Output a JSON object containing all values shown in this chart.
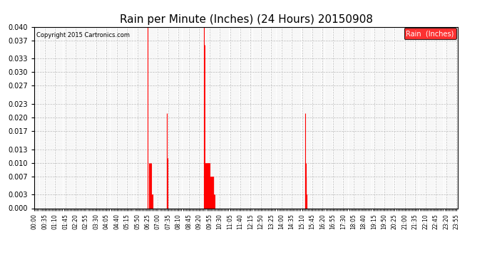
{
  "title": "Rain per Minute (Inches) (24 Hours) 20150908",
  "copyright": "Copyright 2015 Cartronics.com",
  "legend_label": "Rain  (Inches)",
  "bar_color": "#ff0000",
  "background_color": "#ffffff",
  "grid_color": "#bbbbbb",
  "ylim": [
    0.0,
    0.04
  ],
  "yticks": [
    0.0,
    0.003,
    0.007,
    0.01,
    0.013,
    0.017,
    0.02,
    0.023,
    0.027,
    0.03,
    0.033,
    0.037,
    0.04
  ],
  "total_minutes": 1440,
  "rain_events": [
    {
      "minute": 386,
      "value": 0.04
    },
    {
      "minute": 390,
      "value": 0.01
    },
    {
      "minute": 392,
      "value": 0.007
    },
    {
      "minute": 393,
      "value": 0.01
    },
    {
      "minute": 394,
      "value": 0.003
    },
    {
      "minute": 395,
      "value": 0.01
    },
    {
      "minute": 396,
      "value": 0.003
    },
    {
      "minute": 397,
      "value": 0.01
    },
    {
      "minute": 398,
      "value": 0.003
    },
    {
      "minute": 399,
      "value": 0.003
    },
    {
      "minute": 400,
      "value": 0.003
    },
    {
      "minute": 401,
      "value": 0.003
    },
    {
      "minute": 402,
      "value": 0.003
    },
    {
      "minute": 450,
      "value": 0.021
    },
    {
      "minute": 451,
      "value": 0.011
    },
    {
      "minute": 452,
      "value": 0.003
    },
    {
      "minute": 453,
      "value": 0.011
    },
    {
      "minute": 577,
      "value": 0.04
    },
    {
      "minute": 578,
      "value": 0.036
    },
    {
      "minute": 579,
      "value": 0.01
    },
    {
      "minute": 580,
      "value": 0.01
    },
    {
      "minute": 581,
      "value": 0.01
    },
    {
      "minute": 582,
      "value": 0.01
    },
    {
      "minute": 583,
      "value": 0.01
    },
    {
      "minute": 584,
      "value": 0.01
    },
    {
      "minute": 585,
      "value": 0.01
    },
    {
      "minute": 586,
      "value": 0.01
    },
    {
      "minute": 587,
      "value": 0.01
    },
    {
      "minute": 588,
      "value": 0.01
    },
    {
      "minute": 589,
      "value": 0.01
    },
    {
      "minute": 590,
      "value": 0.01
    },
    {
      "minute": 591,
      "value": 0.01
    },
    {
      "minute": 592,
      "value": 0.01
    },
    {
      "minute": 593,
      "value": 0.01
    },
    {
      "minute": 594,
      "value": 0.01
    },
    {
      "minute": 595,
      "value": 0.01
    },
    {
      "minute": 596,
      "value": 0.01
    },
    {
      "minute": 597,
      "value": 0.007
    },
    {
      "minute": 598,
      "value": 0.007
    },
    {
      "minute": 599,
      "value": 0.007
    },
    {
      "minute": 600,
      "value": 0.007
    },
    {
      "minute": 601,
      "value": 0.007
    },
    {
      "minute": 602,
      "value": 0.007
    },
    {
      "minute": 603,
      "value": 0.007
    },
    {
      "minute": 604,
      "value": 0.007
    },
    {
      "minute": 605,
      "value": 0.007
    },
    {
      "minute": 606,
      "value": 0.007
    },
    {
      "minute": 607,
      "value": 0.007
    },
    {
      "minute": 608,
      "value": 0.007
    },
    {
      "minute": 609,
      "value": 0.007
    },
    {
      "minute": 610,
      "value": 0.003
    },
    {
      "minute": 611,
      "value": 0.003
    },
    {
      "minute": 612,
      "value": 0.003
    },
    {
      "minute": 920,
      "value": 0.021
    },
    {
      "minute": 921,
      "value": 0.01
    },
    {
      "minute": 922,
      "value": 0.01
    },
    {
      "minute": 923,
      "value": 0.007
    },
    {
      "minute": 924,
      "value": 0.007
    },
    {
      "minute": 925,
      "value": 0.003
    },
    {
      "minute": 926,
      "value": 0.003
    }
  ],
  "xtick_step": 35,
  "figsize": [
    6.9,
    3.75
  ],
  "dpi": 100,
  "title_fontsize": 11,
  "tick_fontsize": 5.5,
  "ytick_fontsize": 7
}
